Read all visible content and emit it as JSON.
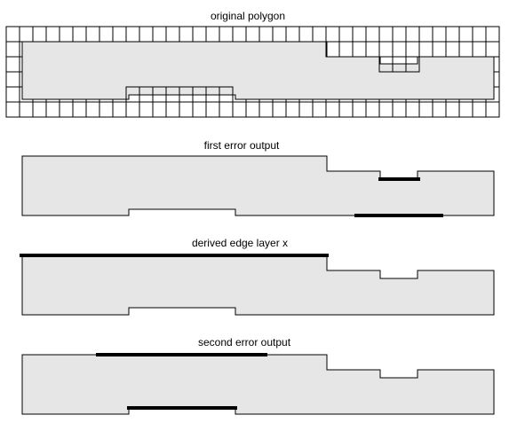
{
  "panels": {
    "original": {
      "title": "original polygon"
    },
    "first_error": {
      "title": "first error output"
    },
    "edge_layer": {
      "title": "derived edge layer x"
    },
    "second_error": {
      "title": "second error output"
    }
  },
  "colors": {
    "polygon_fill": "#e6e6e6",
    "polygon_stroke": "#000000",
    "grid_line": "#000000",
    "highlight_edge": "#000000",
    "background": "#ffffff"
  }
}
